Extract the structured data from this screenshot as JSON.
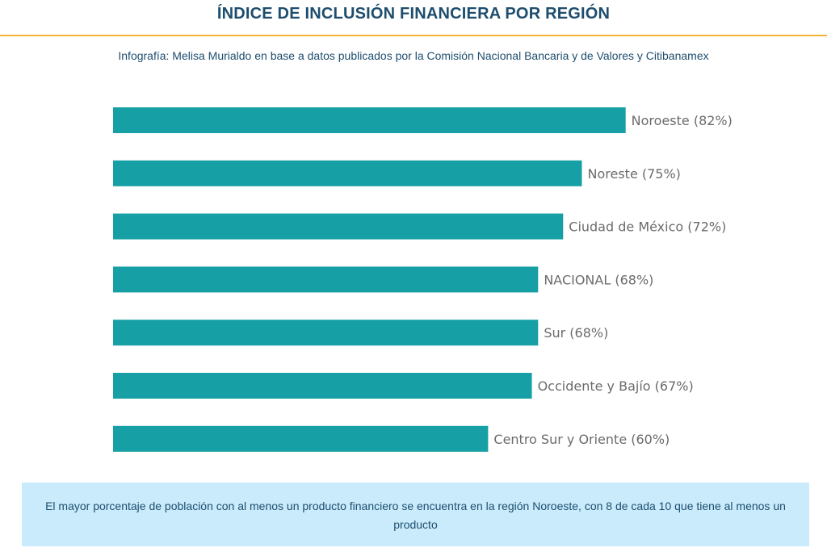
{
  "header": {
    "title": "ÍNDICE DE INCLUSIÓN FINANCIERA POR REGIÓN",
    "subtitle": "Infografía: Melisa Murialdo en base a datos publicados por la Comisión Nacional Bancaria y de Valores y Citibanamex"
  },
  "colors": {
    "accent_rule": "#f2b233",
    "bar": "#16a0a5",
    "note_background": "#c9ebfb",
    "text_primary": "#1e4e6e"
  },
  "chart_data": {
    "type": "bar",
    "orientation": "horizontal",
    "title": "ÍNDICE DE INCLUSIÓN FINANCIERA POR REGIÓN",
    "categories": [
      "Noroeste",
      "Noreste",
      "Ciudad de México",
      "NACIONAL",
      "Sur",
      "Occidente y Bajío",
      "Centro Sur y Oriente"
    ],
    "values": [
      82,
      75,
      72,
      68,
      68,
      67,
      60
    ],
    "labels": [
      "Noroeste (82%)",
      "Noreste (75%)",
      "Ciudad de México (72%)",
      "NACIONAL (68%)",
      "Sur (68%)",
      "Occidente y Bajío (67%)",
      "Centro Sur y Oriente (60%)"
    ],
    "unit": "%",
    "xlim": [
      0,
      100
    ],
    "grid": false,
    "legend": "none"
  },
  "note": {
    "text": "El mayor porcentaje de población con al menos un producto financiero se encuentra en la región Noroeste, con 8 de cada 10 que tiene al menos un producto"
  }
}
